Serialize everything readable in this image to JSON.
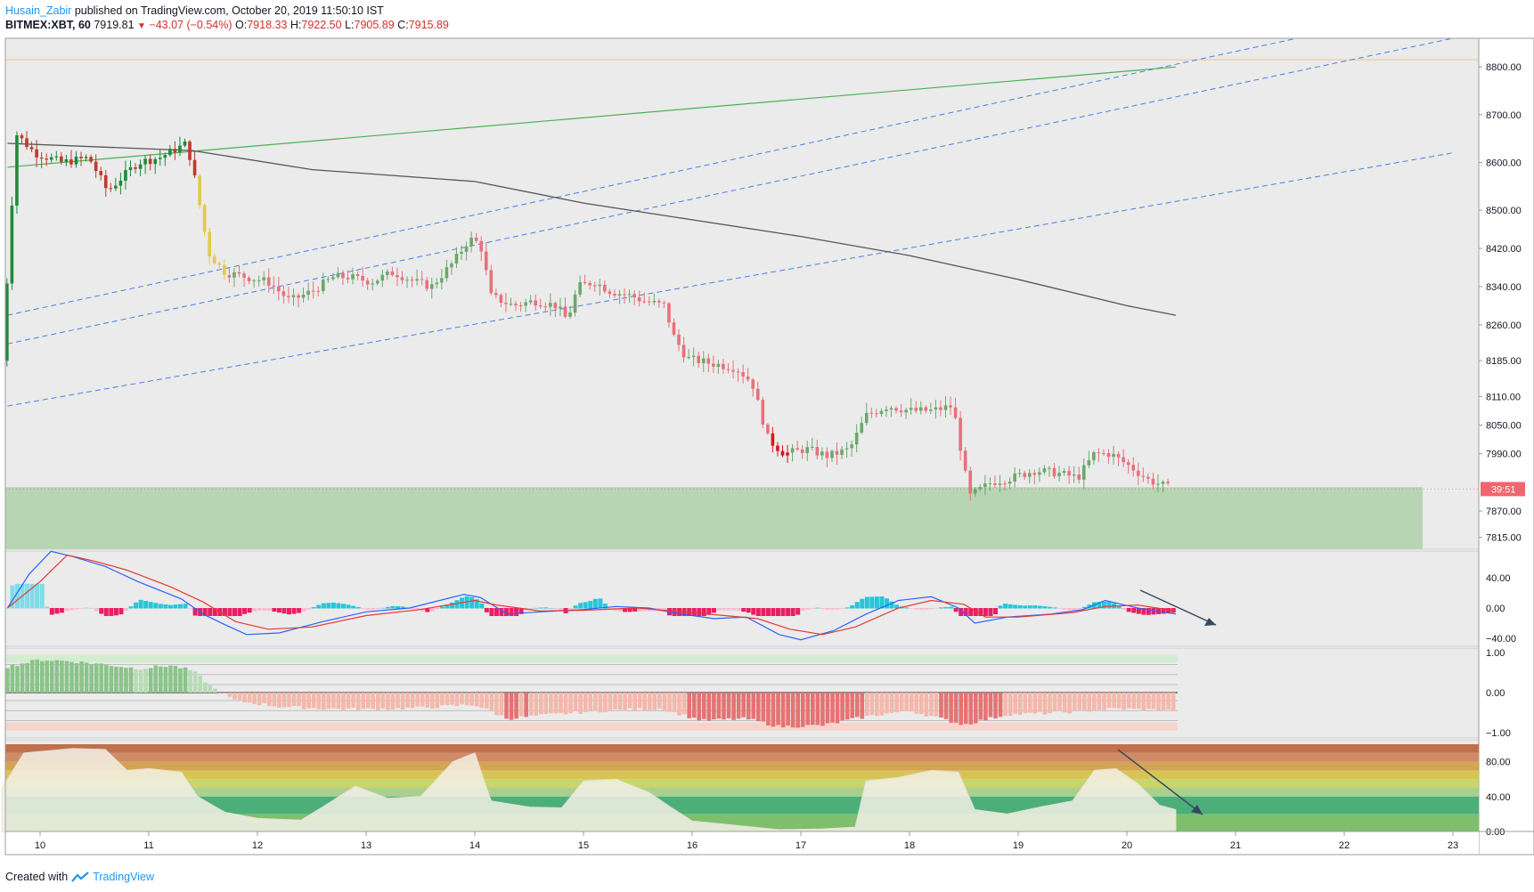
{
  "header": {
    "author": "Husain_Zabir",
    "published_text": "published on TradingView.com, October 20, 2019 11:50:10 IST",
    "symbol": "BITMEX:XBT, 60",
    "last": "7919.81",
    "change": "−43.07 (−0.54%)",
    "open_label": "O:",
    "open": "7918.33",
    "high_label": "H:",
    "high": "7922.50",
    "low_label": "L:",
    "low": "7905.89",
    "close_label": "C:",
    "close": "7915.89"
  },
  "footer": {
    "created_with": "Created with",
    "brand": "TradingView"
  },
  "colors": {
    "up": "#089981",
    "down": "#f23645",
    "zone": "#b4d4b0",
    "macd": "#2962ff",
    "signal": "#e53935",
    "ma_line": "#555555",
    "trend_green": "#4caf50",
    "channel": "#4a7fe8",
    "resistance": "#f5c08a"
  },
  "chart_data": [
    {
      "type": "line",
      "title": "BITMEX:XBT, 60",
      "subtitle": "",
      "x_ticks": [
        "10",
        "11",
        "12",
        "13",
        "14",
        "15",
        "16",
        "17",
        "18",
        "19",
        "20",
        "21",
        "22",
        "23"
      ],
      "y_ticks": [
        "8800.00",
        "8700.00",
        "8600.00",
        "8500.00",
        "8420.00",
        "8340.00",
        "8260.00",
        "8185.00",
        "8110.00",
        "8050.00",
        "7990.00",
        "7870.00",
        "7815.00"
      ],
      "ylim": [
        7790,
        8860
      ],
      "price_label": "39:51",
      "support_zone": [
        7790,
        7920
      ],
      "resistance_level": 8815,
      "series": [
        {
          "values": [
            [
              9.65,
              8185
            ],
            [
              9.78,
              8660
            ],
            [
              9.95,
              8620
            ],
            [
              10.2,
              8600
            ],
            [
              10.45,
              8610
            ],
            [
              10.62,
              8540
            ],
            [
              10.9,
              8600
            ],
            [
              11.1,
              8610
            ],
            [
              11.35,
              8640
            ],
            [
              11.42,
              8570
            ],
            [
              11.55,
              8410
            ],
            [
              11.7,
              8370
            ],
            [
              11.9,
              8360
            ],
            [
              12.1,
              8350
            ],
            [
              12.3,
              8310
            ],
            [
              12.5,
              8330
            ],
            [
              12.7,
              8360
            ],
            [
              12.85,
              8360
            ],
            [
              13.05,
              8350
            ],
            [
              13.25,
              8370
            ],
            [
              13.45,
              8350
            ],
            [
              13.6,
              8340
            ],
            [
              13.8,
              8390
            ],
            [
              13.95,
              8440
            ],
            [
              14.05,
              8430
            ],
            [
              14.15,
              8320
            ],
            [
              14.35,
              8300
            ],
            [
              14.55,
              8310
            ],
            [
              14.75,
              8300
            ],
            [
              14.85,
              8270
            ],
            [
              14.95,
              8340
            ],
            [
              15.1,
              8350
            ],
            [
              15.25,
              8330
            ],
            [
              15.45,
              8320
            ],
            [
              15.55,
              8310
            ],
            [
              15.75,
              8300
            ],
            [
              15.82,
              8240
            ],
            [
              15.95,
              8190
            ],
            [
              16.15,
              8180
            ],
            [
              16.4,
              8170
            ],
            [
              16.55,
              8140
            ],
            [
              16.7,
              8020
            ],
            [
              16.85,
              7990
            ],
            [
              17.05,
              8000
            ],
            [
              17.25,
              7985
            ],
            [
              17.45,
              8000
            ],
            [
              17.6,
              8070
            ],
            [
              17.8,
              8090
            ],
            [
              18.0,
              8080
            ],
            [
              18.2,
              8080
            ],
            [
              18.4,
              8090
            ],
            [
              18.55,
              7900
            ],
            [
              18.75,
              7930
            ],
            [
              18.95,
              7940
            ],
            [
              19.15,
              7955
            ],
            [
              19.35,
              7950
            ],
            [
              19.55,
              7940
            ],
            [
              19.7,
              7990
            ],
            [
              19.85,
              7990
            ],
            [
              20.05,
              7960
            ],
            [
              20.2,
              7935
            ],
            [
              20.42,
              7916
            ]
          ]
        },
        {
          "values": [
            [
              9.7,
              8640
            ],
            [
              11.4,
              8625
            ],
            [
              12.5,
              8585
            ],
            [
              14,
              8560
            ],
            [
              15,
              8515
            ],
            [
              16,
              8480
            ],
            [
              17,
              8445
            ],
            [
              18,
              8405
            ],
            [
              19,
              8355
            ],
            [
              20,
              8300
            ],
            [
              20.45,
              8280
            ]
          ]
        },
        {
          "values": [
            [
              9.7,
              8590
            ],
            [
              20.45,
              8800
            ]
          ]
        },
        {
          "values": [
            [
              9.7,
              8280
            ],
            [
              23.0,
              8930
            ]
          ]
        },
        {
          "values": [
            [
              9.7,
              8220
            ],
            [
              23.0,
              8860
            ]
          ]
        },
        {
          "values": [
            [
              9.7,
              8090
            ],
            [
              23.0,
              8620
            ]
          ]
        }
      ]
    },
    {
      "type": "line",
      "title": "",
      "y_ticks": [
        "40.00",
        "0.00",
        "−40.00"
      ],
      "ylim": [
        -50,
        90
      ],
      "series": [
        {
          "values": [
            [
              9.7,
              0
            ],
            [
              9.9,
              45
            ],
            [
              10.1,
              75
            ],
            [
              10.3,
              68
            ],
            [
              10.6,
              55
            ],
            [
              10.9,
              35
            ],
            [
              11.3,
              12
            ],
            [
              11.5,
              -8
            ],
            [
              11.7,
              -22
            ],
            [
              11.9,
              -35
            ],
            [
              12.2,
              -33
            ],
            [
              12.6,
              -18
            ],
            [
              13.0,
              -5
            ],
            [
              13.4,
              0
            ],
            [
              13.9,
              18
            ],
            [
              14.05,
              14
            ],
            [
              14.3,
              -8
            ],
            [
              14.6,
              -5
            ],
            [
              15.0,
              -2
            ],
            [
              15.3,
              2
            ],
            [
              15.6,
              0
            ],
            [
              15.9,
              -8
            ],
            [
              16.2,
              -14
            ],
            [
              16.5,
              -12
            ],
            [
              16.8,
              -35
            ],
            [
              17.0,
              -42
            ],
            [
              17.3,
              -30
            ],
            [
              17.6,
              -8
            ],
            [
              17.9,
              10
            ],
            [
              18.2,
              15
            ],
            [
              18.45,
              0
            ],
            [
              18.6,
              -20
            ],
            [
              18.9,
              -12
            ],
            [
              19.3,
              -8
            ],
            [
              19.6,
              -2
            ],
            [
              19.8,
              10
            ],
            [
              20.1,
              0
            ],
            [
              20.45,
              -8
            ]
          ]
        },
        {
          "values": [
            [
              9.7,
              0
            ],
            [
              10.0,
              35
            ],
            [
              10.25,
              70
            ],
            [
              10.5,
              62
            ],
            [
              10.8,
              50
            ],
            [
              11.2,
              28
            ],
            [
              11.5,
              8
            ],
            [
              11.8,
              -18
            ],
            [
              12.1,
              -28
            ],
            [
              12.5,
              -25
            ],
            [
              13.0,
              -10
            ],
            [
              13.5,
              -2
            ],
            [
              14.0,
              10
            ],
            [
              14.2,
              4
            ],
            [
              14.6,
              -4
            ],
            [
              15.0,
              -3
            ],
            [
              15.5,
              0
            ],
            [
              15.9,
              -5
            ],
            [
              16.3,
              -10
            ],
            [
              16.6,
              -14
            ],
            [
              16.9,
              -28
            ],
            [
              17.2,
              -35
            ],
            [
              17.5,
              -25
            ],
            [
              17.9,
              0
            ],
            [
              18.2,
              10
            ],
            [
              18.5,
              5
            ],
            [
              18.7,
              -12
            ],
            [
              19.0,
              -12
            ],
            [
              19.5,
              -6
            ],
            [
              19.8,
              2
            ],
            [
              20.1,
              4
            ],
            [
              20.45,
              -4
            ]
          ]
        }
      ]
    },
    {
      "type": "bar",
      "title": "",
      "y_ticks": [
        "1.00",
        "0.00",
        "−1.00"
      ],
      "ylim": [
        -1.05,
        1.05
      ],
      "series": [
        {
          "values": [
            [
              9.7,
              0.65
            ],
            [
              10.0,
              0.82
            ],
            [
              10.3,
              0.78
            ],
            [
              10.6,
              0.7
            ],
            [
              10.9,
              0.6
            ],
            [
              11.2,
              0.68
            ],
            [
              11.4,
              0.55
            ],
            [
              11.6,
              0.1
            ],
            [
              11.8,
              -0.2
            ],
            [
              12.2,
              -0.35
            ],
            [
              12.6,
              -0.4
            ],
            [
              13.0,
              -0.42
            ],
            [
              13.5,
              -0.38
            ],
            [
              14.0,
              -0.3
            ],
            [
              14.3,
              -0.65
            ],
            [
              14.7,
              -0.55
            ],
            [
              15.2,
              -0.45
            ],
            [
              15.7,
              -0.4
            ],
            [
              16.1,
              -0.7
            ],
            [
              16.5,
              -0.65
            ],
            [
              16.8,
              -0.85
            ],
            [
              17.2,
              -0.82
            ],
            [
              17.6,
              -0.6
            ],
            [
              18.0,
              -0.45
            ],
            [
              18.5,
              -0.8
            ],
            [
              18.9,
              -0.55
            ],
            [
              19.4,
              -0.5
            ],
            [
              19.9,
              -0.4
            ],
            [
              20.45,
              -0.45
            ]
          ]
        }
      ]
    },
    {
      "type": "area",
      "title": "",
      "y_ticks": [
        "80.00",
        "40.00",
        "0.00"
      ],
      "ylim": [
        0,
        100
      ],
      "series": [
        {
          "values": [
            [
              9.65,
              50
            ],
            [
              9.85,
              90
            ],
            [
              10.3,
              95
            ],
            [
              10.6,
              94
            ],
            [
              10.8,
              70
            ],
            [
              11.0,
              72
            ],
            [
              11.3,
              68
            ],
            [
              11.45,
              40
            ],
            [
              11.7,
              22
            ],
            [
              12.0,
              15
            ],
            [
              12.4,
              13
            ],
            [
              12.6,
              28
            ],
            [
              12.9,
              52
            ],
            [
              13.2,
              38
            ],
            [
              13.5,
              40
            ],
            [
              13.8,
              80
            ],
            [
              14.0,
              90
            ],
            [
              14.15,
              35
            ],
            [
              14.5,
              28
            ],
            [
              14.8,
              27
            ],
            [
              15.0,
              58
            ],
            [
              15.3,
              60
            ],
            [
              15.6,
              45
            ],
            [
              15.8,
              28
            ],
            [
              16.0,
              12
            ],
            [
              16.4,
              7
            ],
            [
              16.8,
              2
            ],
            [
              17.2,
              3
            ],
            [
              17.5,
              5
            ],
            [
              17.6,
              58
            ],
            [
              17.9,
              62
            ],
            [
              18.2,
              70
            ],
            [
              18.45,
              68
            ],
            [
              18.6,
              25
            ],
            [
              18.9,
              20
            ],
            [
              19.2,
              28
            ],
            [
              19.5,
              35
            ],
            [
              19.7,
              70
            ],
            [
              19.9,
              72
            ],
            [
              20.1,
              55
            ],
            [
              20.3,
              30
            ],
            [
              20.45,
              25
            ]
          ]
        }
      ]
    }
  ]
}
